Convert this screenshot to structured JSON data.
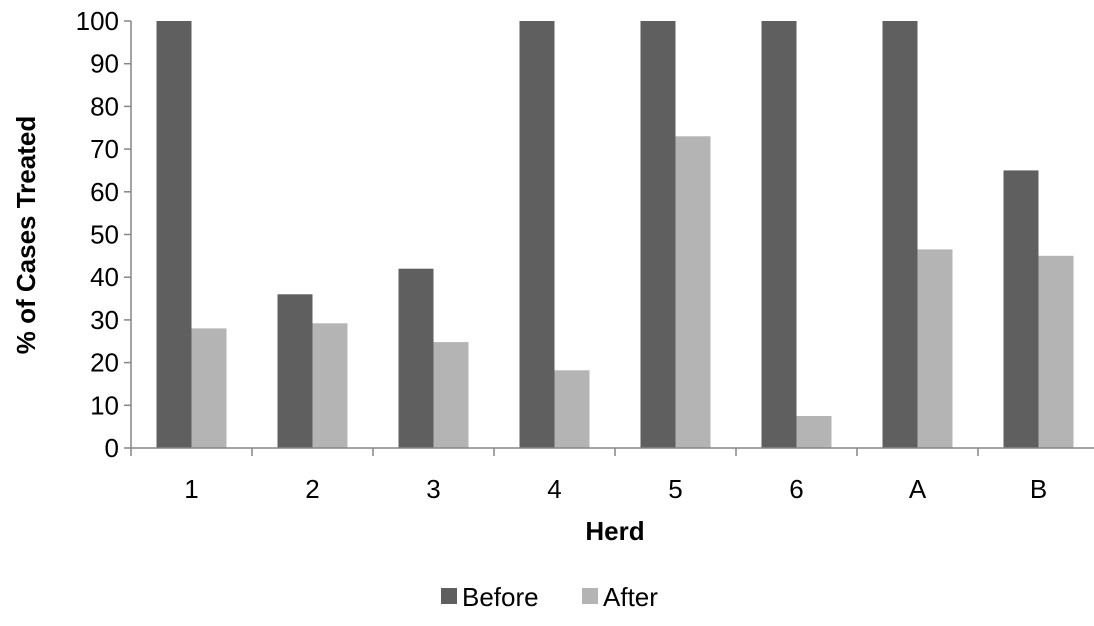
{
  "chart_data": {
    "type": "bar",
    "title": "",
    "xlabel": "Herd",
    "ylabel": "% of Cases Treated",
    "categories": [
      "1",
      "2",
      "3",
      "4",
      "5",
      "6",
      "A",
      "B"
    ],
    "series": [
      {
        "name": "Before",
        "values": [
          100,
          36,
          42,
          100,
          100,
          100,
          100,
          65
        ]
      },
      {
        "name": "After",
        "values": [
          28,
          29.2,
          24.8,
          18.2,
          73,
          7.5,
          46.5,
          45
        ]
      }
    ],
    "ylim": [
      0,
      100
    ],
    "yticks": [
      0,
      10,
      20,
      30,
      40,
      50,
      60,
      70,
      80,
      90,
      100
    ],
    "grid": false,
    "legend_position": "bottom",
    "colors": {
      "Before": "#5f5f5f",
      "After": "#b4b4b4",
      "axis": "#868686"
    }
  }
}
